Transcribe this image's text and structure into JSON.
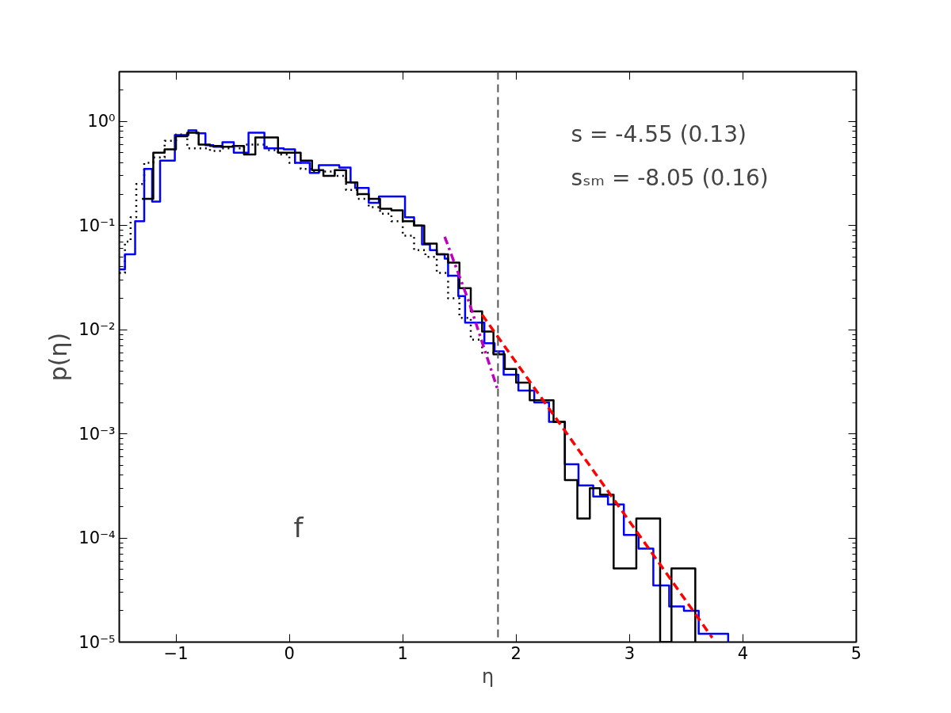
{
  "chart_data": {
    "type": "step",
    "xlabel": "η",
    "ylabel": "p(η)",
    "log": "y",
    "xlim": [
      -1.5,
      5
    ],
    "ylim": [
      1e-05,
      3
    ],
    "xticks": [
      {
        "value": -1,
        "label": "−1"
      },
      0,
      1,
      2,
      3,
      4,
      5
    ],
    "yticks": [
      {
        "value": 1,
        "label": "10⁰"
      },
      {
        "value": 0.1,
        "label": "10⁻¹"
      },
      {
        "value": 0.01,
        "label": "10⁻²"
      },
      {
        "value": 0.001,
        "label": "10⁻³"
      },
      {
        "value": 0.0001,
        "label": "10⁻⁴"
      },
      {
        "value": 1e-05,
        "label": "10⁻⁵"
      }
    ],
    "grid": false,
    "series": [
      {
        "color": "#000000",
        "line_style": "dotted",
        "x": [
          -1.5,
          -1.45,
          -1.4,
          -1.35,
          -1.28,
          -1.2,
          -1.1,
          -1.0,
          -0.9,
          -0.8,
          -0.7,
          -0.6,
          -0.5,
          -0.4,
          -0.3,
          -0.2,
          -0.1,
          0.0,
          0.1,
          0.2,
          0.3,
          0.4,
          0.5,
          0.6,
          0.7,
          0.8,
          0.9,
          1.0,
          1.1,
          1.2,
          1.3,
          1.4,
          1.5,
          1.6,
          1.7,
          1.8,
          1.9
        ],
        "values": [
          0.035,
          0.07,
          0.12,
          0.25,
          0.4,
          0.45,
          0.65,
          0.75,
          0.55,
          0.55,
          0.52,
          0.55,
          0.55,
          0.6,
          0.6,
          0.53,
          0.48,
          0.4,
          0.35,
          0.33,
          0.33,
          0.3,
          0.22,
          0.18,
          0.15,
          0.13,
          0.11,
          0.08,
          0.058,
          0.05,
          0.035,
          0.02,
          0.013,
          0.008,
          0.006,
          0.006,
          0.006
        ]
      },
      {
        "color": "#0000ff",
        "line_style": "solid",
        "x": [
          -1.5,
          -1.45,
          -1.36,
          -1.28,
          -1.21,
          -1.14,
          -1.01,
          -0.89,
          -0.82,
          -0.74,
          -0.67,
          -0.59,
          -0.49,
          -0.36,
          -0.22,
          -0.05,
          0.05,
          0.18,
          0.26,
          0.44,
          0.54,
          0.58,
          0.7,
          0.79,
          1.02,
          1.1,
          1.17,
          1.24,
          1.3,
          1.37,
          1.4,
          1.49,
          1.55,
          1.65,
          1.72,
          1.81,
          1.89,
          2.02,
          2.16,
          2.29,
          2.43,
          2.55,
          2.68,
          2.81,
          2.95,
          3.08,
          3.21,
          3.35,
          3.48,
          3.61,
          3.87
        ],
        "values": [
          0.038,
          0.053,
          0.11,
          0.35,
          0.17,
          0.42,
          0.74,
          0.82,
          0.77,
          0.59,
          0.57,
          0.63,
          0.5,
          0.78,
          0.55,
          0.54,
          0.4,
          0.32,
          0.38,
          0.36,
          0.26,
          0.23,
          0.165,
          0.19,
          0.12,
          0.1,
          0.066,
          0.058,
          0.053,
          0.048,
          0.033,
          0.021,
          0.0117,
          0.0117,
          0.0074,
          0.0062,
          0.0037,
          0.0026,
          0.002,
          0.0013,
          0.00051,
          0.00032,
          0.00025,
          0.00021,
          0.000107,
          7.9e-05,
          3.5e-05,
          2.2e-05,
          2e-05,
          1.2e-05,
          1e-05
        ]
      },
      {
        "color": "#000000",
        "line_style": "solid",
        "x": [
          -1.3,
          -1.2,
          -1.1,
          -1.0,
          -0.9,
          -0.8,
          -0.7,
          -0.6,
          -0.5,
          -0.4,
          -0.3,
          -0.2,
          -0.1,
          0.0,
          0.1,
          0.2,
          0.3,
          0.4,
          0.5,
          0.6,
          0.7,
          0.8,
          0.9,
          1.0,
          1.1,
          1.19,
          1.3,
          1.4,
          1.5,
          1.6,
          1.7,
          1.8,
          1.9,
          2.0,
          2.12,
          2.33,
          2.43,
          2.54,
          2.65,
          2.74,
          2.86,
          3.06,
          3.27,
          3.37,
          3.58
        ],
        "values": [
          0.18,
          0.5,
          0.54,
          0.72,
          0.78,
          0.6,
          0.58,
          0.57,
          0.58,
          0.48,
          0.7,
          0.7,
          0.5,
          0.5,
          0.42,
          0.34,
          0.3,
          0.34,
          0.26,
          0.2,
          0.18,
          0.145,
          0.14,
          0.11,
          0.1,
          0.067,
          0.053,
          0.044,
          0.025,
          0.015,
          0.0096,
          0.0058,
          0.0042,
          0.0031,
          0.0021,
          0.0013,
          0.00036,
          0.000154,
          0.0003,
          0.00026,
          5.1e-05,
          0.000154,
          1e-05,
          5.1e-05,
          1e-05
        ]
      },
      {
        "type": "line",
        "color": "#bf00bf",
        "line_style": "dashdot",
        "x": [
          1.37,
          1.58,
          1.84
        ],
        "values": [
          0.078,
          0.019,
          0.0026
        ]
      },
      {
        "type": "line",
        "color": "#ff0000",
        "line_style": "dashed",
        "x": [
          1.7,
          2.71,
          3.73
        ],
        "values": [
          0.0139,
          0.0004,
          1.1e-05
        ]
      }
    ],
    "ref_lines": [
      {
        "axis": "x",
        "value": 1.84,
        "color": "#555555",
        "line_style": "dashed"
      }
    ],
    "annotations": [
      "s = -4.55 (0.13)",
      "sₛₘ = -8.05 (0.16)",
      "f"
    ]
  }
}
